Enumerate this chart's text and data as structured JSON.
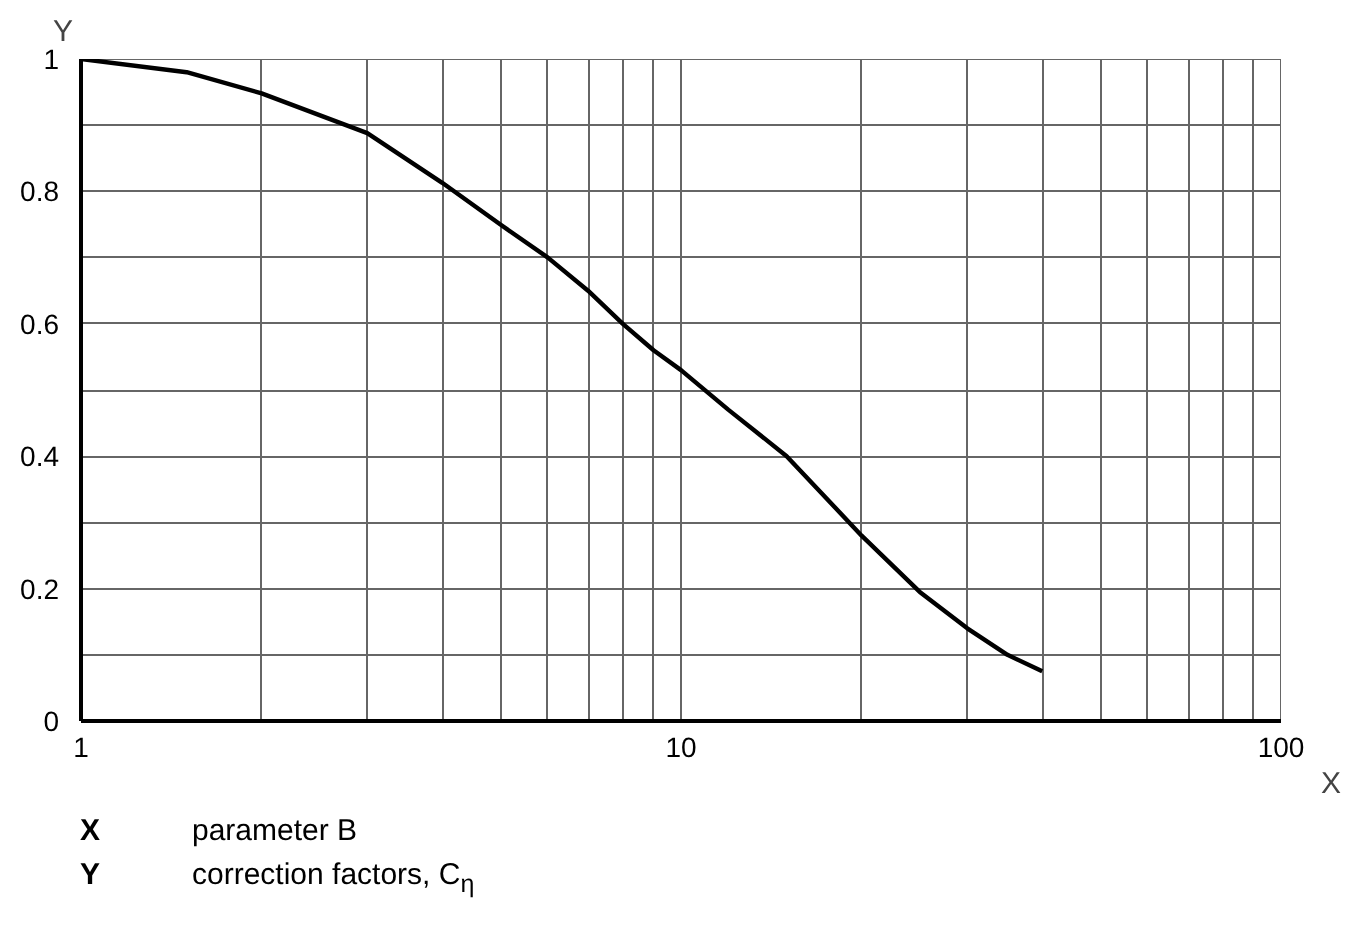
{
  "chart_data": {
    "type": "line",
    "xlabel": "X",
    "ylabel": "Y",
    "log": "x",
    "grid": true,
    "marker": "none",
    "line_style": "solid",
    "x": [
      1,
      1.5,
      2,
      3,
      4,
      5,
      6,
      7,
      8,
      9,
      10,
      12,
      15,
      20,
      25,
      30,
      35,
      40
    ],
    "series": [
      {
        "color": "#000000",
        "values": [
          1,
          0.98,
          0.948,
          0.888,
          0.813,
          0.75,
          0.7,
          0.65,
          0.6,
          0.56,
          0.53,
          0.47,
          0.4,
          0.28,
          0.195,
          0.14,
          0.1,
          0.075
        ]
      }
    ],
    "xlim": [
      1,
      100
    ],
    "ylim": [
      0,
      1
    ],
    "xticks": [
      1,
      10,
      100
    ],
    "yticks": [
      0,
      0.2,
      0.4,
      0.6,
      0.8,
      1
    ],
    "annotations": [
      "X parameter B",
      "Y correction factors, C$_{η}$"
    ]
  }
}
